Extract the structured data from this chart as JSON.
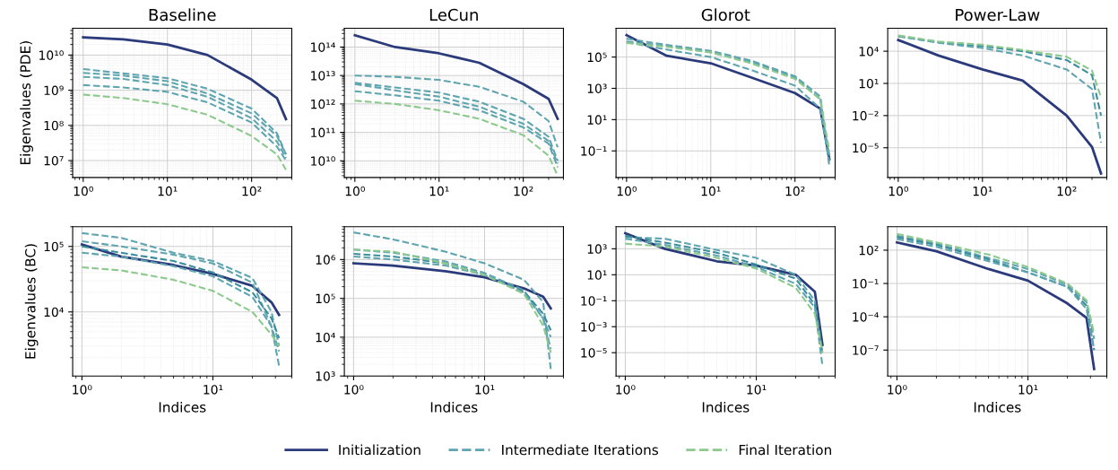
{
  "chart_data": [
    {
      "type": "line",
      "title": "Baseline",
      "ylabel": "Eigenvalues (PDE)",
      "log": "xy",
      "grid": true,
      "legend": "bottom",
      "tick_labels": "xy",
      "xlim": [
        0.75,
        300
      ],
      "xticks": [
        {
          "value": 1,
          "label": "10⁰"
        },
        {
          "value": 10,
          "label": "10¹"
        },
        {
          "value": 100,
          "label": "10²"
        }
      ],
      "ylim": [
        3300000.0,
        58000000000.0
      ],
      "yticks": [
        {
          "value": 10000000.0,
          "label": "10⁷"
        },
        {
          "value": 100000000.0,
          "label": "10⁸"
        },
        {
          "value": 1000000000.0,
          "label": "10⁹"
        },
        {
          "value": 10000000000.0,
          "label": "10¹⁰"
        }
      ],
      "x": [
        1,
        3,
        10,
        30,
        100,
        200,
        256
      ],
      "series": [
        {
          "name": "Initialization",
          "color": "#2b3a7a",
          "line_style": "solid",
          "values": [
            32000000000.0,
            28000000000.0,
            20000000000.0,
            10000000000.0,
            2000000000.0,
            600000000.0,
            150000000.0
          ]
        },
        {
          "name": "Intermediate Iterations",
          "color": "#5fa5b0",
          "line_style": "dashed",
          "values": [
            4000000000.0,
            3000000000.0,
            2200000000.0,
            1100000000.0,
            300000000.0,
            60000000.0,
            15000000.0
          ]
        },
        {
          "color": "#5fa5b0",
          "line_style": "dashed",
          "values": [
            3100000000.0,
            2600000000.0,
            1800000000.0,
            800000000.0,
            220000000.0,
            50000000.0,
            15000000.0
          ]
        },
        {
          "color": "#5fa5b0",
          "line_style": "dashed",
          "values": [
            2400000000.0,
            2100000000.0,
            1400000000.0,
            650000000.0,
            160000000.0,
            35000000.0,
            12000000.0
          ]
        },
        {
          "color": "#5fa5b0",
          "line_style": "dashed",
          "values": [
            1400000000.0,
            1200000000.0,
            900000000.0,
            450000000.0,
            120000000.0,
            25000000.0,
            10000000.0
          ]
        },
        {
          "name": "Final Iteration",
          "color": "#8cc98c",
          "line_style": "dashed",
          "values": [
            750000000.0,
            600000000.0,
            400000000.0,
            200000000.0,
            50000000.0,
            15000000.0,
            5500000.0
          ]
        }
      ]
    },
    {
      "type": "line",
      "title": "LeCun",
      "log": "xy",
      "grid": true,
      "tick_labels": "xy",
      "xlim": [
        0.75,
        300
      ],
      "xticks": [
        {
          "value": 1,
          "label": "10⁰"
        },
        {
          "value": 10,
          "label": "10¹"
        },
        {
          "value": 100,
          "label": "10²"
        }
      ],
      "ylim": [
        2600000000.0,
        460000000000000.0
      ],
      "yticks": [
        {
          "value": 10000000000.0,
          "label": "10¹⁰"
        },
        {
          "value": 100000000000.0,
          "label": "10¹¹"
        },
        {
          "value": 1000000000000.0,
          "label": "10¹²"
        },
        {
          "value": 10000000000000.0,
          "label": "10¹³"
        },
        {
          "value": 100000000000000.0,
          "label": "10¹⁴"
        }
      ],
      "x": [
        1,
        3,
        10,
        30,
        100,
        200,
        256
      ],
      "series": [
        {
          "color": "#2b3a7a",
          "line_style": "solid",
          "values": [
            260000000000000.0,
            100000000000000.0,
            60000000000000.0,
            28000000000000.0,
            5000000000000.0,
            1500000000000.0,
            300000000000.0
          ]
        },
        {
          "color": "#5fa5b0",
          "line_style": "dashed",
          "values": [
            10000000000000.0,
            9000000000000.0,
            7000000000000.0,
            4000000000000.0,
            1200000000000.0,
            250000000000.0,
            30000000000.0
          ]
        },
        {
          "color": "#5fa5b0",
          "line_style": "dashed",
          "values": [
            5500000000000.0,
            3800000000000.0,
            2500000000000.0,
            1200000000000.0,
            300000000000.0,
            70000000000.0,
            10000000000.0
          ]
        },
        {
          "color": "#5fa5b0",
          "line_style": "dashed",
          "values": [
            5000000000000.0,
            3000000000000.0,
            1800000000000.0,
            800000000000.0,
            200000000000.0,
            50000000000.0,
            8000000000.0
          ]
        },
        {
          "color": "#5fa5b0",
          "line_style": "dashed",
          "values": [
            2800000000000.0,
            2000000000000.0,
            1300000000000.0,
            600000000000.0,
            150000000000.0,
            40000000000.0,
            6000000000.0
          ]
        },
        {
          "color": "#8cc98c",
          "line_style": "dashed",
          "values": [
            1300000000000.0,
            1000000000000.0,
            600000000000.0,
            300000000000.0,
            80000000000.0,
            15000000000.0,
            3000000000.0
          ]
        }
      ]
    },
    {
      "type": "line",
      "title": "Glorot",
      "log": "xy",
      "grid": true,
      "tick_labels": "xy",
      "xlim": [
        0.75,
        300
      ],
      "xticks": [
        {
          "value": 1,
          "label": "10⁰"
        },
        {
          "value": 10,
          "label": "10¹"
        },
        {
          "value": 100,
          "label": "10²"
        }
      ],
      "ylim": [
        0.002,
        7000000.0
      ],
      "yticks": [
        {
          "value": 0.1,
          "label": "10⁻¹"
        },
        {
          "value": 10,
          "label": "10¹"
        },
        {
          "value": 1000,
          "label": "10³"
        },
        {
          "value": 100000.0,
          "label": "10⁵"
        }
      ],
      "x": [
        1,
        3,
        10,
        30,
        100,
        200,
        256
      ],
      "series": [
        {
          "color": "#2b3a7a",
          "line_style": "solid",
          "values": [
            2500000.0,
            120000.0,
            40000.0,
            5000.0,
            500,
            50,
            0.03
          ]
        },
        {
          "color": "#5fa5b0",
          "line_style": "dashed",
          "values": [
            1500000.0,
            600000.0,
            250000.0,
            60000.0,
            6000.0,
            300,
            0.01
          ]
        },
        {
          "color": "#5fa5b0",
          "line_style": "dashed",
          "values": [
            1000000.0,
            500000.0,
            200000.0,
            50000.0,
            5000.0,
            200,
            0.05
          ]
        },
        {
          "color": "#5fa5b0",
          "line_style": "dashed",
          "values": [
            900000.0,
            300000.0,
            100000.0,
            15000.0,
            1500.0,
            50,
            0.02
          ]
        },
        {
          "color": "#8cc98c",
          "line_style": "dashed",
          "values": [
            800000.0,
            450000.0,
            200000.0,
            40000.0,
            4000.0,
            200,
            0.1
          ]
        }
      ]
    },
    {
      "type": "line",
      "title": "Power-Law",
      "log": "xy",
      "grid": true,
      "tick_labels": "xy",
      "xlim": [
        0.75,
        300
      ],
      "xticks": [
        {
          "value": 1,
          "label": "10⁰"
        },
        {
          "value": 10,
          "label": "10¹"
        },
        {
          "value": 100,
          "label": "10²"
        }
      ],
      "ylim": [
        1.7e-08,
        1400000.0
      ],
      "yticks": [
        {
          "value": 1e-05,
          "label": "10⁻⁵"
        },
        {
          "value": 0.01,
          "label": "10⁻²"
        },
        {
          "value": 10,
          "label": "10¹"
        },
        {
          "value": 10000.0,
          "label": "10⁴"
        }
      ],
      "x": [
        1,
        3,
        10,
        30,
        100,
        200,
        256
      ],
      "series": [
        {
          "color": "#2b3a7a",
          "line_style": "solid",
          "values": [
            110000.0,
            4000.0,
            200,
            18,
            0.01,
            1.2e-05,
            4e-08
          ]
        },
        {
          "color": "#3a8d9c",
          "line_style": "dashed",
          "values": [
            250000.0,
            70000.0,
            30000.0,
            10000.0,
            1500.0,
            60,
            0.01
          ]
        },
        {
          "color": "#5fa5b0",
          "line_style": "dashed",
          "values": [
            250000.0,
            60000.0,
            20000.0,
            4000.0,
            200,
            3,
            3e-05
          ]
        },
        {
          "color": "#8cc98c",
          "line_style": "dashed",
          "values": [
            300000.0,
            80000.0,
            40000.0,
            13000.0,
            3000.0,
            160,
            0.5
          ]
        }
      ]
    },
    {
      "type": "line",
      "xlabel": "Indices",
      "ylabel": "Eigenvalues (BC)",
      "log": "xy",
      "grid": true,
      "tick_labels": "xy",
      "xlim": [
        0.85,
        40
      ],
      "xticks": [
        {
          "value": 1,
          "label": "10⁰"
        },
        {
          "value": 10,
          "label": "10¹"
        }
      ],
      "ylim": [
        1050,
        200000.0
      ],
      "yticks": [
        {
          "value": 10000.0,
          "label": "10⁴"
        },
        {
          "value": 100000.0,
          "label": "10⁵"
        }
      ],
      "x": [
        1,
        2,
        5,
        10,
        20,
        28,
        32
      ],
      "series": [
        {
          "color": "#2b3a7a",
          "line_style": "solid",
          "values": [
            107000.0,
            70000.0,
            52000.0,
            38000.0,
            25000.0,
            14000.0,
            9000.0
          ]
        },
        {
          "color": "#5fa5b0",
          "line_style": "dashed",
          "values": [
            160000.0,
            135000.0,
            80000.0,
            60000.0,
            33000.0,
            10000.0,
            3000.0
          ]
        },
        {
          "color": "#5fa5b0",
          "line_style": "dashed",
          "values": [
            120000.0,
            100000.0,
            75000.0,
            55000.0,
            28000.0,
            6000.0,
            1500.0
          ]
        },
        {
          "color": "#3a8d9c",
          "line_style": "dashed",
          "values": [
            100000.0,
            80000.0,
            60000.0,
            40000.0,
            20000.0,
            8000.0,
            4000.0
          ]
        },
        {
          "color": "#5fa5b0",
          "line_style": "dashed",
          "values": [
            80000.0,
            70000.0,
            50000.0,
            35000.0,
            17000.0,
            6000.0,
            2500.0
          ]
        },
        {
          "color": "#8cc98c",
          "line_style": "dashed",
          "values": [
            48000.0,
            43000.0,
            31000.0,
            21000.0,
            10000.0,
            4500.0,
            3000.0
          ]
        }
      ]
    },
    {
      "type": "line",
      "xlabel": "Indices",
      "log": "xy",
      "grid": true,
      "tick_labels": "xy",
      "xlim": [
        0.85,
        40
      ],
      "xticks": [
        {
          "value": 1,
          "label": "10⁰"
        },
        {
          "value": 10,
          "label": "10¹"
        }
      ],
      "ylim": [
        1000,
        7000000.0
      ],
      "yticks": [
        {
          "value": 1000,
          "label": "10³"
        },
        {
          "value": 10000.0,
          "label": "10⁴"
        },
        {
          "value": 100000.0,
          "label": "10⁵"
        },
        {
          "value": 1000000.0,
          "label": "10⁶"
        }
      ],
      "x": [
        1,
        2,
        5,
        10,
        20,
        28,
        32
      ],
      "series": [
        {
          "color": "#2b3a7a",
          "line_style": "solid",
          "values": [
            800000.0,
            700000.0,
            500000.0,
            350000.0,
            180000.0,
            110000.0,
            55000.0
          ]
        },
        {
          "color": "#5fa5b0",
          "line_style": "dashed",
          "values": [
            5000000.0,
            3300000.0,
            1600000.0,
            800000.0,
            300000.0,
            80000.0,
            1500
          ]
        },
        {
          "color": "#5fa5b0",
          "line_style": "dashed",
          "values": [
            1800000.0,
            1500000.0,
            900000.0,
            450000.0,
            160000.0,
            30000.0,
            10000.0
          ]
        },
        {
          "color": "#3a8d9c",
          "line_style": "dashed",
          "values": [
            1400000.0,
            1200000.0,
            800000.0,
            400000.0,
            150000.0,
            40000.0,
            15000.0
          ]
        },
        {
          "color": "#5fa5b0",
          "line_style": "dashed",
          "values": [
            1200000.0,
            1000000.0,
            700000.0,
            400000.0,
            140000.0,
            30000.0,
            5000.0
          ]
        },
        {
          "color": "#8cc98c",
          "line_style": "dashed",
          "values": [
            1800000.0,
            1600000.0,
            800000.0,
            400000.0,
            130000.0,
            20000.0,
            4000.0
          ]
        }
      ]
    },
    {
      "type": "line",
      "xlabel": "Indices",
      "log": "xy",
      "grid": true,
      "tick_labels": "xy",
      "xlim": [
        0.85,
        40
      ],
      "xticks": [
        {
          "value": 1,
          "label": "10⁰"
        },
        {
          "value": 10,
          "label": "10¹"
        }
      ],
      "ylim": [
        1.6e-07,
        50000.0
      ],
      "yticks": [
        {
          "value": 1e-05,
          "label": "10⁻⁵"
        },
        {
          "value": 0.001,
          "label": "10⁻³"
        },
        {
          "value": 0.1,
          "label": "10⁻¹"
        },
        {
          "value": 10,
          "label": "10¹"
        },
        {
          "value": 1000,
          "label": "10³"
        }
      ],
      "x": [
        1,
        2,
        5,
        10,
        20,
        28,
        32
      ],
      "series": [
        {
          "color": "#2b3a7a",
          "line_style": "solid",
          "values": [
            16000.0,
            1000.0,
            110,
            50,
            10,
            0.5,
            4e-05
          ]
        },
        {
          "color": "#5fa5b0",
          "line_style": "dashed",
          "values": [
            8000.0,
            6000.0,
            800,
            200,
            10,
            0.1,
            1e-05
          ]
        },
        {
          "color": "#3a8d9c",
          "line_style": "dashed",
          "values": [
            10000.0,
            3000.0,
            500,
            60,
            5,
            0.05,
            1e-05
          ]
        },
        {
          "color": "#5fa5b0",
          "line_style": "dashed",
          "values": [
            6000.0,
            2000.0,
            300,
            40,
            2,
            0.03,
            1e-06
          ]
        },
        {
          "color": "#8cc98c",
          "line_style": "dashed",
          "values": [
            2500.0,
            1500.0,
            200,
            30,
            1,
            0.01,
            1e-05
          ]
        }
      ]
    },
    {
      "type": "line",
      "xlabel": "Indices",
      "log": "xy",
      "grid": true,
      "tick_labels": "xy",
      "xlim": [
        0.85,
        40
      ],
      "xticks": [
        {
          "value": 1,
          "label": "10⁰"
        },
        {
          "value": 10,
          "label": "10¹"
        }
      ],
      "ylim": [
        4.6e-10,
        13000.0
      ],
      "yticks": [
        {
          "value": 1e-07,
          "label": "10⁻⁷"
        },
        {
          "value": 0.0001,
          "label": "10⁻⁴"
        },
        {
          "value": 0.1,
          "label": "10⁻¹"
        },
        {
          "value": 100,
          "label": "10²"
        }
      ],
      "x": [
        1,
        2,
        5,
        10,
        20,
        28,
        32
      ],
      "series": [
        {
          "color": "#2b3a7a",
          "line_style": "solid",
          "values": [
            500,
            80,
            2,
            0.18,
            0.0016,
            8e-05,
            2e-09
          ]
        },
        {
          "color": "#5fa5b0",
          "line_style": "dashed",
          "values": [
            2000.0,
            400,
            20,
            2,
            0.08,
            0.002,
            1e-06
          ]
        },
        {
          "color": "#3a8d9c",
          "line_style": "dashed",
          "values": [
            1500.0,
            300,
            15,
            1,
            0.05,
            0.001,
            1e-07
          ]
        },
        {
          "color": "#5fa5b0",
          "line_style": "dashed",
          "values": [
            1000.0,
            200,
            10,
            1,
            0.05,
            0.0005,
            1e-07
          ]
        },
        {
          "color": "#8cc98c",
          "line_style": "dashed",
          "values": [
            3000.0,
            500,
            40,
            3,
            0.1,
            0.003,
            3e-06
          ]
        }
      ]
    }
  ]
}
